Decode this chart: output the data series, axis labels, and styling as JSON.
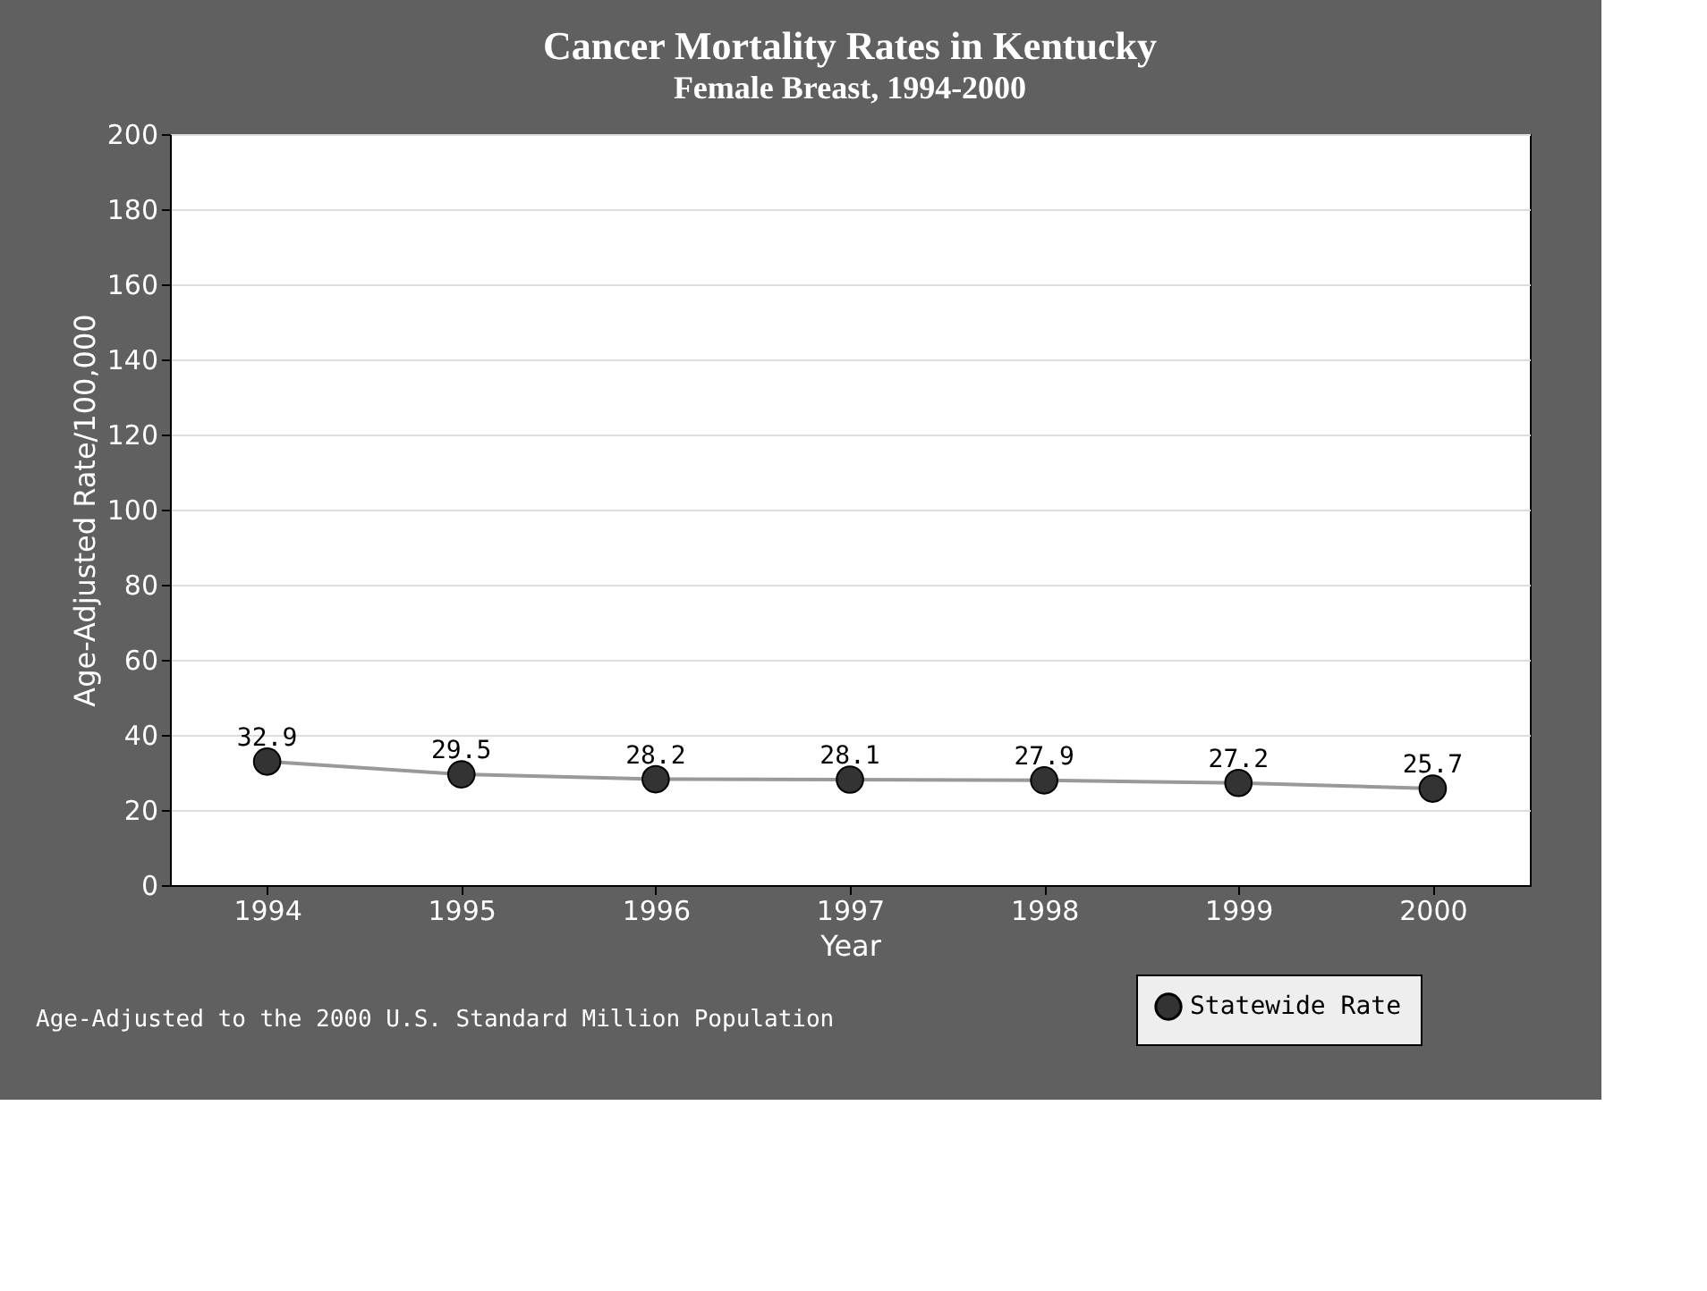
{
  "chart_data": {
    "type": "line",
    "title": "Cancer Mortality Rates in Kentucky",
    "subtitle": "Female Breast, 1994-2000",
    "xlabel": "Year",
    "ylabel": "Age-Adjusted Rate/100,000",
    "categories": [
      "1994",
      "1995",
      "1996",
      "1997",
      "1998",
      "1999",
      "2000"
    ],
    "series": [
      {
        "name": "Statewide Rate",
        "color": "#333333",
        "values": [
          32.9,
          29.5,
          28.2,
          28.1,
          27.9,
          27.2,
          25.7
        ]
      }
    ],
    "ylim": [
      0,
      200
    ],
    "yticks": [
      0,
      20,
      40,
      60,
      80,
      100,
      120,
      140,
      160,
      180,
      200
    ],
    "grid": "y",
    "legend": "bottom right",
    "marker": "circle",
    "line_style": "solid",
    "data_labels": true,
    "annotations": [
      "Age-Adjusted to the 2000 U.S. Standard Million Population"
    ]
  }
}
